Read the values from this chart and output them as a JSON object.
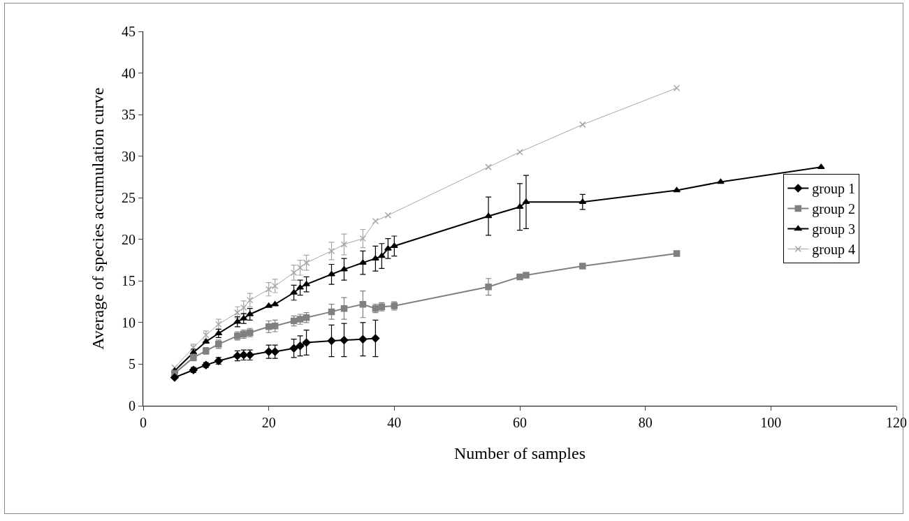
{
  "chart_data": {
    "type": "line",
    "xlabel": "Number of samples",
    "ylabel": "Average of species accumulation curve",
    "xlim": [
      0,
      120
    ],
    "xticks": [
      0,
      20,
      40,
      60,
      80,
      100,
      120
    ],
    "ylim": [
      0,
      45
    ],
    "yticks": [
      0,
      5,
      10,
      15,
      20,
      25,
      30,
      35,
      40,
      45
    ],
    "grid": false,
    "legend": "right",
    "line_style": "solid",
    "series": [
      {
        "name": "group 1",
        "color": "#000000",
        "marker": "diamond",
        "x": [
          5,
          8,
          10,
          12,
          15,
          16,
          17,
          20,
          21,
          24,
          25,
          26,
          30,
          32,
          35,
          37
        ],
        "values": [
          3.4,
          4.3,
          4.9,
          5.4,
          6.0,
          6.1,
          6.1,
          6.5,
          6.5,
          6.9,
          7.2,
          7.6,
          7.8,
          7.9,
          8.0,
          8.1
        ],
        "errors": [
          null,
          0.3,
          0.3,
          0.4,
          0.6,
          0.6,
          0.6,
          0.8,
          0.8,
          1.1,
          1.2,
          1.5,
          1.9,
          2.0,
          2.0,
          2.2
        ]
      },
      {
        "name": "group 2",
        "color": "#808080",
        "marker": "square",
        "x": [
          5,
          8,
          10,
          12,
          15,
          16,
          17,
          20,
          21,
          24,
          25,
          26,
          30,
          32,
          35,
          37,
          38,
          40,
          55,
          60,
          61,
          70,
          85
        ],
        "values": [
          3.9,
          5.8,
          6.6,
          7.4,
          8.4,
          8.6,
          8.8,
          9.5,
          9.6,
          10.2,
          10.4,
          10.6,
          11.3,
          11.7,
          12.2,
          11.7,
          11.9,
          12.0,
          14.3,
          15.5,
          15.7,
          16.8,
          18.3
        ],
        "errors": [
          null,
          0.4,
          0.4,
          0.5,
          0.5,
          0.5,
          0.5,
          0.7,
          0.7,
          0.6,
          0.6,
          0.6,
          0.9,
          1.3,
          1.6,
          0.5,
          0.5,
          0.5,
          1.0,
          null,
          null,
          null,
          null
        ]
      },
      {
        "name": "group 3",
        "color": "#000000",
        "marker": "triangle",
        "x": [
          5,
          8,
          10,
          12,
          15,
          16,
          17,
          20,
          21,
          24,
          25,
          26,
          30,
          32,
          35,
          37,
          38,
          39,
          40,
          55,
          60,
          61,
          70,
          85,
          92,
          108
        ],
        "values": [
          4.2,
          6.4,
          7.7,
          8.7,
          10.1,
          10.5,
          11.0,
          12.0,
          12.2,
          13.6,
          14.2,
          14.6,
          15.8,
          16.4,
          17.2,
          17.7,
          18.0,
          18.9,
          19.2,
          22.8,
          23.9,
          24.5,
          24.5,
          25.9,
          26.9,
          28.7
        ],
        "errors": [
          null,
          0.4,
          null,
          0.5,
          0.6,
          0.6,
          0.7,
          null,
          null,
          0.9,
          0.9,
          0.9,
          1.2,
          1.3,
          1.4,
          1.5,
          1.5,
          1.2,
          1.2,
          2.3,
          2.8,
          3.2,
          0.9,
          null,
          null,
          null
        ]
      },
      {
        "name": "group 4",
        "color": "#a6a6a6",
        "marker": "cross",
        "x": [
          5,
          8,
          10,
          12,
          15,
          16,
          17,
          20,
          21,
          24,
          25,
          26,
          30,
          32,
          35,
          37,
          39,
          55,
          60,
          70,
          85
        ],
        "values": [
          4.6,
          7.0,
          8.5,
          9.8,
          11.2,
          11.8,
          12.7,
          14.0,
          14.4,
          16.0,
          16.6,
          17.2,
          18.6,
          19.4,
          20.1,
          22.2,
          22.9,
          28.7,
          30.5,
          33.8,
          38.2
        ],
        "errors": [
          null,
          0.4,
          0.5,
          0.6,
          0.7,
          0.8,
          0.8,
          0.8,
          0.8,
          0.9,
          0.9,
          0.9,
          1.05,
          1.25,
          1.1,
          null,
          null,
          null,
          null,
          null,
          null
        ]
      }
    ]
  }
}
